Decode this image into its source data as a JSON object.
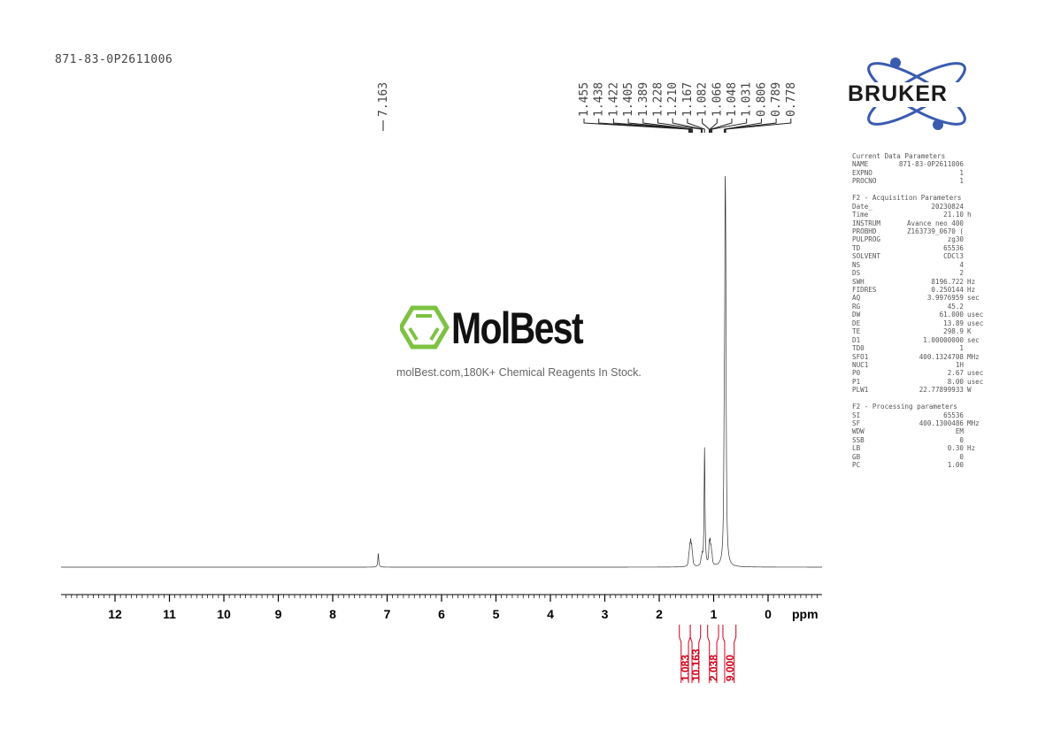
{
  "sample_name": "871-83-0P2611006",
  "logo": {
    "brand": "BRUKER",
    "color": "#3a5bb0"
  },
  "watermark": {
    "name": "MolBest",
    "tagline": "molBest.com,180K+ Chemical Reagents In Stock.",
    "color": "#7dc242"
  },
  "parameters": {
    "current": {
      "title": "Current Data Parameters",
      "rows": [
        [
          "NAME",
          "871-83-0P2611006",
          ""
        ],
        [
          "EXPNO",
          "1",
          ""
        ],
        [
          "PROCNO",
          "1",
          ""
        ]
      ]
    },
    "acquisition": {
      "title": "F2 - Acquisition Parameters",
      "rows": [
        [
          "Date_",
          "20230824",
          ""
        ],
        [
          "Time",
          "21.10",
          "h"
        ],
        [
          "INSTRUM",
          "Avance neo 400",
          ""
        ],
        [
          "PROBHD",
          "Z163739_0670 (",
          ""
        ],
        [
          "PULPROG",
          "zg30",
          ""
        ],
        [
          "TD",
          "65536",
          ""
        ],
        [
          "SOLVENT",
          "CDCl3",
          ""
        ],
        [
          "NS",
          "4",
          ""
        ],
        [
          "DS",
          "2",
          ""
        ],
        [
          "SWH",
          "8196.722",
          "Hz"
        ],
        [
          "FIDRES",
          "0.250144",
          "Hz"
        ],
        [
          "AQ",
          "3.9976959",
          "sec"
        ],
        [
          "RG",
          "45.2",
          ""
        ],
        [
          "DW",
          "61.000",
          "usec"
        ],
        [
          "DE",
          "13.89",
          "usec"
        ],
        [
          "TE",
          "298.9",
          "K"
        ],
        [
          "D1",
          "1.00000000",
          "sec"
        ],
        [
          "TD0",
          "1",
          ""
        ],
        [
          "SFO1",
          "400.1324708",
          "MHz"
        ],
        [
          "NUC1",
          "1H",
          ""
        ],
        [
          "P0",
          "2.67",
          "usec"
        ],
        [
          "P1",
          "8.00",
          "usec"
        ],
        [
          "PLW1",
          "22.77899933",
          "W"
        ]
      ]
    },
    "processing": {
      "title": "F2 - Processing parameters",
      "rows": [
        [
          "SI",
          "65536",
          ""
        ],
        [
          "SF",
          "400.1300486",
          "MHz"
        ],
        [
          "WDW",
          "EM",
          ""
        ],
        [
          "SSB",
          "0",
          ""
        ],
        [
          "LB",
          "0.30",
          "Hz"
        ],
        [
          "GB",
          "0",
          ""
        ],
        [
          "PC",
          "1.00",
          ""
        ]
      ]
    }
  },
  "chart_data": {
    "type": "line",
    "xlabel": "ppm",
    "xlim": [
      13,
      -1
    ],
    "x_reversed": true,
    "ticks": [
      "12",
      "11",
      "10",
      "9",
      "8",
      "7",
      "6",
      "5",
      "4",
      "3",
      "2",
      "1",
      "0"
    ],
    "peak_labels": [
      "7.163",
      "1.455",
      "1.438",
      "1.422",
      "1.405",
      "1.389",
      "1.228",
      "1.210",
      "1.167",
      "1.082",
      "1.066",
      "1.048",
      "1.031",
      "0.806",
      "0.789",
      "0.778"
    ],
    "peaks": [
      {
        "ppm": 7.163,
        "intensity": 0.05
      },
      {
        "ppm": 1.455,
        "intensity": 0.03
      },
      {
        "ppm": 1.438,
        "intensity": 0.055
      },
      {
        "ppm": 1.422,
        "intensity": 0.07
      },
      {
        "ppm": 1.405,
        "intensity": 0.055
      },
      {
        "ppm": 1.389,
        "intensity": 0.03
      },
      {
        "ppm": 1.228,
        "intensity": 0.02
      },
      {
        "ppm": 1.21,
        "intensity": 0.03
      },
      {
        "ppm": 1.167,
        "intensity": 0.43
      },
      {
        "ppm": 1.082,
        "intensity": 0.065
      },
      {
        "ppm": 1.066,
        "intensity": 0.07
      },
      {
        "ppm": 1.048,
        "intensity": 0.05
      },
      {
        "ppm": 1.031,
        "intensity": 0.03
      },
      {
        "ppm": 0.806,
        "intensity": 0.33
      },
      {
        "ppm": 0.789,
        "intensity": 1.0
      },
      {
        "ppm": 0.778,
        "intensity": 0.75
      }
    ],
    "integrals": [
      {
        "from": 1.63,
        "to": 1.43,
        "value": "1.083"
      },
      {
        "from": 1.43,
        "to": 1.24,
        "value": "10.163"
      },
      {
        "from": 1.11,
        "to": 0.91,
        "value": "2.038"
      },
      {
        "from": 0.83,
        "to": 0.59,
        "value": "9.000"
      }
    ],
    "integral_color": "#d0021b"
  }
}
